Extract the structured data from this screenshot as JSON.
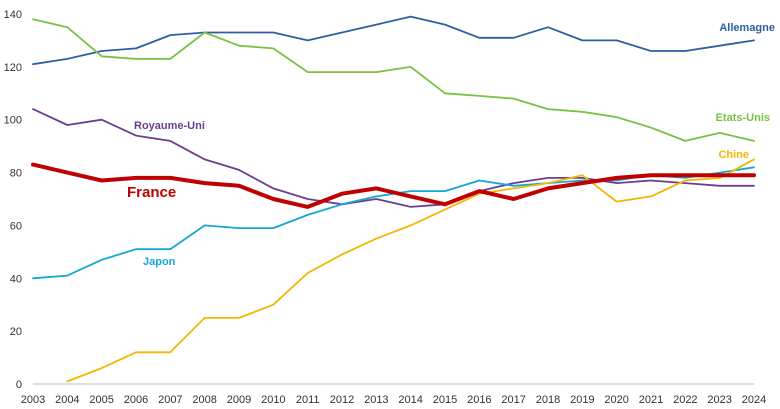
{
  "chart_data": {
    "type": "line",
    "title": "",
    "xlabel": "",
    "ylabel": "",
    "ylim": [
      0,
      140
    ],
    "yticks": [
      0,
      20,
      40,
      60,
      80,
      100,
      120,
      140
    ],
    "grid": false,
    "legend": "inline labels",
    "x": [
      2003,
      2004,
      2005,
      2006,
      2007,
      2008,
      2009,
      2010,
      2011,
      2012,
      2013,
      2014,
      2015,
      2016,
      2017,
      2018,
      2019,
      2020,
      2021,
      2022,
      2023,
      2024
    ],
    "series": [
      {
        "name": "Allemagne",
        "color": "#2e5f9e",
        "values": [
          121,
          123,
          126,
          127,
          132,
          133,
          133,
          133,
          130,
          133,
          136,
          139,
          136,
          131,
          131,
          135,
          130,
          130,
          126,
          126,
          128,
          130
        ]
      },
      {
        "name": "Etats-Unis",
        "color": "#7ac143",
        "values": [
          138,
          135,
          124,
          123,
          123,
          133,
          128,
          127,
          118,
          118,
          118,
          120,
          110,
          109,
          108,
          104,
          103,
          101,
          97,
          92,
          95,
          92
        ]
      },
      {
        "name": "Royaume-Uni",
        "color": "#6b3e8f",
        "values": [
          104,
          98,
          100,
          94,
          92,
          85,
          81,
          74,
          70,
          68,
          70,
          67,
          68,
          73,
          76,
          78,
          78,
          76,
          77,
          76,
          75,
          75
        ]
      },
      {
        "name": "Japon",
        "color": "#14a6d6",
        "values": [
          40,
          41,
          47,
          51,
          51,
          60,
          59,
          59,
          64,
          68,
          71,
          73,
          73,
          77,
          75,
          76,
          77,
          77,
          79,
          78,
          80,
          82
        ]
      },
      {
        "name": "Chine",
        "color": "#f2b705",
        "values": [
          null,
          1,
          6,
          12,
          12,
          25,
          25,
          30,
          42,
          49,
          55,
          60,
          66,
          72,
          74,
          76,
          79,
          69,
          71,
          77,
          78,
          85
        ]
      },
      {
        "name": "France",
        "color": "#c00000",
        "values": [
          83,
          80,
          77,
          78,
          78,
          76,
          75,
          70,
          67,
          72,
          74,
          71,
          68,
          73,
          70,
          74,
          76,
          78,
          79,
          79,
          79,
          79
        ]
      }
    ]
  }
}
